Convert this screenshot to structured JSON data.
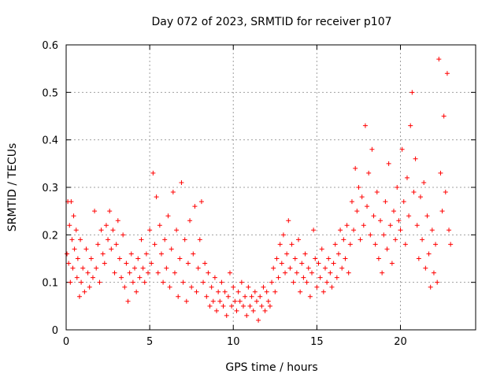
{
  "chart_data": {
    "type": "scatter",
    "title": "Day 072 of 2023, SRMTID for receiver p107",
    "xlabel": "GPS time / hours",
    "ylabel": "SRMTID / TECUs",
    "xlim": [
      0,
      24.5
    ],
    "ylim": [
      0,
      0.6
    ],
    "x_ticks": [
      0,
      5,
      10,
      15,
      20
    ],
    "x_tick_labels": [
      "0",
      "5",
      "10",
      "15",
      "20"
    ],
    "y_ticks": [
      0,
      0.1,
      0.2,
      0.3,
      0.4,
      0.5,
      0.6
    ],
    "y_tick_labels": [
      "0",
      "0.1",
      "0.2",
      "0.3",
      "0.4",
      "0.5",
      "0.6"
    ],
    "grid": true,
    "marker": "plus",
    "color": "#ff0000",
    "series": [
      {
        "name": "SRMTID",
        "points": [
          [
            0.05,
            0.16
          ],
          [
            0.1,
            0.27
          ],
          [
            0.15,
            0.14
          ],
          [
            0.2,
            0.22
          ],
          [
            0.25,
            0.1
          ],
          [
            0.3,
            0.27
          ],
          [
            0.35,
            0.19
          ],
          [
            0.4,
            0.13
          ],
          [
            0.45,
            0.24
          ],
          [
            0.5,
            0.17
          ],
          [
            0.6,
            0.21
          ],
          [
            0.65,
            0.11
          ],
          [
            0.7,
            0.15
          ],
          [
            0.8,
            0.07
          ],
          [
            0.85,
            0.19
          ],
          [
            0.9,
            0.1
          ],
          [
            1.0,
            0.13
          ],
          [
            1.1,
            0.08
          ],
          [
            1.2,
            0.17
          ],
          [
            1.3,
            0.12
          ],
          [
            1.4,
            0.09
          ],
          [
            1.5,
            0.15
          ],
          [
            1.6,
            0.11
          ],
          [
            1.7,
            0.25
          ],
          [
            1.8,
            0.13
          ],
          [
            1.9,
            0.18
          ],
          [
            2.0,
            0.1
          ],
          [
            2.1,
            0.21
          ],
          [
            2.2,
            0.16
          ],
          [
            2.3,
            0.14
          ],
          [
            2.4,
            0.22
          ],
          [
            2.5,
            0.19
          ],
          [
            2.6,
            0.25
          ],
          [
            2.7,
            0.17
          ],
          [
            2.8,
            0.21
          ],
          [
            2.9,
            0.12
          ],
          [
            3.0,
            0.18
          ],
          [
            3.1,
            0.23
          ],
          [
            3.2,
            0.15
          ],
          [
            3.3,
            0.11
          ],
          [
            3.4,
            0.2
          ],
          [
            3.5,
            0.09
          ],
          [
            3.6,
            0.14
          ],
          [
            3.7,
            0.06
          ],
          [
            3.8,
            0.12
          ],
          [
            3.9,
            0.16
          ],
          [
            4.0,
            0.1
          ],
          [
            4.1,
            0.13
          ],
          [
            4.2,
            0.08
          ],
          [
            4.3,
            0.15
          ],
          [
            4.4,
            0.11
          ],
          [
            4.5,
            0.19
          ],
          [
            4.6,
            0.13
          ],
          [
            4.7,
            0.1
          ],
          [
            4.8,
            0.16
          ],
          [
            4.9,
            0.12
          ],
          [
            5.0,
            0.21
          ],
          [
            5.1,
            0.14
          ],
          [
            5.2,
            0.33
          ],
          [
            5.3,
            0.18
          ],
          [
            5.4,
            0.28
          ],
          [
            5.5,
            0.12
          ],
          [
            5.6,
            0.22
          ],
          [
            5.7,
            0.16
          ],
          [
            5.8,
            0.1
          ],
          [
            5.9,
            0.19
          ],
          [
            6.0,
            0.13
          ],
          [
            6.1,
            0.24
          ],
          [
            6.2,
            0.09
          ],
          [
            6.3,
            0.17
          ],
          [
            6.4,
            0.29
          ],
          [
            6.5,
            0.12
          ],
          [
            6.6,
            0.21
          ],
          [
            6.7,
            0.07
          ],
          [
            6.8,
            0.15
          ],
          [
            6.9,
            0.31
          ],
          [
            7.0,
            0.1
          ],
          [
            7.1,
            0.19
          ],
          [
            7.2,
            0.06
          ],
          [
            7.3,
            0.14
          ],
          [
            7.4,
            0.23
          ],
          [
            7.5,
            0.09
          ],
          [
            7.6,
            0.16
          ],
          [
            7.7,
            0.26
          ],
          [
            7.8,
            0.08
          ],
          [
            7.9,
            0.13
          ],
          [
            8.0,
            0.19
          ],
          [
            8.1,
            0.27
          ],
          [
            8.2,
            0.1
          ],
          [
            8.3,
            0.14
          ],
          [
            8.4,
            0.07
          ],
          [
            8.5,
            0.12
          ],
          [
            8.6,
            0.05
          ],
          [
            8.7,
            0.09
          ],
          [
            8.8,
            0.06
          ],
          [
            8.9,
            0.11
          ],
          [
            9.0,
            0.04
          ],
          [
            9.1,
            0.08
          ],
          [
            9.2,
            0.06
          ],
          [
            9.3,
            0.1
          ],
          [
            9.4,
            0.05
          ],
          [
            9.5,
            0.08
          ],
          [
            9.6,
            0.03
          ],
          [
            9.7,
            0.07
          ],
          [
            9.8,
            0.12
          ],
          [
            9.9,
            0.05
          ],
          [
            10.0,
            0.09
          ],
          [
            10.1,
            0.06
          ],
          [
            10.2,
            0.04
          ],
          [
            10.3,
            0.08
          ],
          [
            10.4,
            0.06
          ],
          [
            10.5,
            0.1
          ],
          [
            10.6,
            0.05
          ],
          [
            10.7,
            0.07
          ],
          [
            10.8,
            0.03
          ],
          [
            10.9,
            0.09
          ],
          [
            11.0,
            0.05
          ],
          [
            11.1,
            0.07
          ],
          [
            11.2,
            0.04
          ],
          [
            11.3,
            0.08
          ],
          [
            11.4,
            0.06
          ],
          [
            11.5,
            0.02
          ],
          [
            11.6,
            0.07
          ],
          [
            11.7,
            0.05
          ],
          [
            11.8,
            0.09
          ],
          [
            11.9,
            0.04
          ],
          [
            12.0,
            0.08
          ],
          [
            12.1,
            0.06
          ],
          [
            12.2,
            0.05
          ],
          [
            12.3,
            0.1
          ],
          [
            12.4,
            0.13
          ],
          [
            12.5,
            0.08
          ],
          [
            12.6,
            0.15
          ],
          [
            12.7,
            0.11
          ],
          [
            12.8,
            0.18
          ],
          [
            12.9,
            0.14
          ],
          [
            13.0,
            0.2
          ],
          [
            13.1,
            0.12
          ],
          [
            13.2,
            0.16
          ],
          [
            13.3,
            0.23
          ],
          [
            13.4,
            0.13
          ],
          [
            13.5,
            0.18
          ],
          [
            13.6,
            0.1
          ],
          [
            13.7,
            0.15
          ],
          [
            13.8,
            0.12
          ],
          [
            13.9,
            0.19
          ],
          [
            14.0,
            0.08
          ],
          [
            14.1,
            0.14
          ],
          [
            14.2,
            0.11
          ],
          [
            14.3,
            0.16
          ],
          [
            14.4,
            0.1
          ],
          [
            14.5,
            0.13
          ],
          [
            14.6,
            0.07
          ],
          [
            14.7,
            0.12
          ],
          [
            14.8,
            0.21
          ],
          [
            14.9,
            0.15
          ],
          [
            15.0,
            0.09
          ],
          [
            15.1,
            0.14
          ],
          [
            15.2,
            0.11
          ],
          [
            15.3,
            0.17
          ],
          [
            15.4,
            0.08
          ],
          [
            15.5,
            0.13
          ],
          [
            15.6,
            0.1
          ],
          [
            15.7,
            0.15
          ],
          [
            15.8,
            0.12
          ],
          [
            15.9,
            0.09
          ],
          [
            16.0,
            0.14
          ],
          [
            16.1,
            0.18
          ],
          [
            16.2,
            0.11
          ],
          [
            16.3,
            0.16
          ],
          [
            16.4,
            0.21
          ],
          [
            16.5,
            0.13
          ],
          [
            16.6,
            0.19
          ],
          [
            16.7,
            0.15
          ],
          [
            16.8,
            0.22
          ],
          [
            16.9,
            0.12
          ],
          [
            17.0,
            0.18
          ],
          [
            17.1,
            0.27
          ],
          [
            17.2,
            0.21
          ],
          [
            17.3,
            0.34
          ],
          [
            17.4,
            0.25
          ],
          [
            17.5,
            0.3
          ],
          [
            17.6,
            0.19
          ],
          [
            17.7,
            0.28
          ],
          [
            17.8,
            0.22
          ],
          [
            17.9,
            0.43
          ],
          [
            18.0,
            0.26
          ],
          [
            18.1,
            0.33
          ],
          [
            18.2,
            0.2
          ],
          [
            18.3,
            0.38
          ],
          [
            18.4,
            0.24
          ],
          [
            18.5,
            0.18
          ],
          [
            18.6,
            0.29
          ],
          [
            18.7,
            0.15
          ],
          [
            18.8,
            0.23
          ],
          [
            18.9,
            0.12
          ],
          [
            19.0,
            0.2
          ],
          [
            19.1,
            0.27
          ],
          [
            19.2,
            0.17
          ],
          [
            19.3,
            0.35
          ],
          [
            19.4,
            0.22
          ],
          [
            19.5,
            0.14
          ],
          [
            19.6,
            0.25
          ],
          [
            19.7,
            0.19
          ],
          [
            19.8,
            0.3
          ],
          [
            19.9,
            0.23
          ],
          [
            20.0,
            0.21
          ],
          [
            20.1,
            0.38
          ],
          [
            20.2,
            0.27
          ],
          [
            20.3,
            0.18
          ],
          [
            20.4,
            0.32
          ],
          [
            20.5,
            0.24
          ],
          [
            20.6,
            0.43
          ],
          [
            20.7,
            0.5
          ],
          [
            20.8,
            0.29
          ],
          [
            20.9,
            0.36
          ],
          [
            21.0,
            0.22
          ],
          [
            21.1,
            0.15
          ],
          [
            21.2,
            0.28
          ],
          [
            21.3,
            0.19
          ],
          [
            21.4,
            0.31
          ],
          [
            21.5,
            0.13
          ],
          [
            21.6,
            0.24
          ],
          [
            21.7,
            0.16
          ],
          [
            21.8,
            0.09
          ],
          [
            21.9,
            0.21
          ],
          [
            22.0,
            0.12
          ],
          [
            22.1,
            0.18
          ],
          [
            22.2,
            0.1
          ],
          [
            22.3,
            0.57
          ],
          [
            22.4,
            0.33
          ],
          [
            22.5,
            0.25
          ],
          [
            22.6,
            0.45
          ],
          [
            22.7,
            0.29
          ],
          [
            22.8,
            0.54
          ],
          [
            22.9,
            0.21
          ],
          [
            23.0,
            0.18
          ]
        ]
      }
    ]
  }
}
